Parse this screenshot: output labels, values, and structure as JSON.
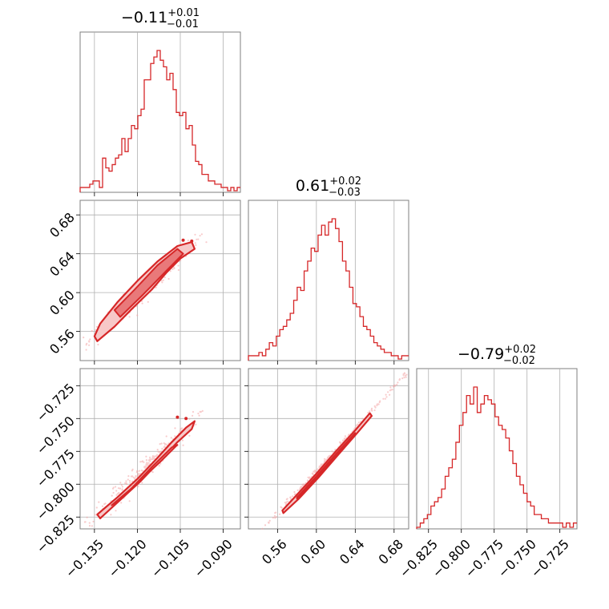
{
  "chart_data": {
    "type": "corner",
    "color": "#d62728",
    "parameters": [
      {
        "axis_range": [
          -0.14,
          -0.084
        ],
        "ticks": [
          -0.135,
          -0.12,
          -0.105,
          -0.09
        ],
        "tick_labels": [
          "−0.135",
          "−0.120",
          "−0.105",
          "−0.090"
        ],
        "title": {
          "median": "−0.11",
          "plus": "+0.01",
          "minus": "−0.01"
        }
      },
      {
        "axis_range": [
          0.53,
          0.695
        ],
        "ticks": [
          0.56,
          0.6,
          0.64,
          0.68
        ],
        "tick_labels": [
          "0.56",
          "0.60",
          "0.64",
          "0.68"
        ],
        "title": {
          "median": "0.61",
          "plus": "+0.02",
          "minus": "−0.03"
        }
      },
      {
        "axis_range": [
          -0.834,
          -0.712
        ],
        "ticks": [
          -0.825,
          -0.8,
          -0.775,
          -0.75,
          -0.725
        ],
        "tick_labels": [
          "−0.825",
          "−0.800",
          "−0.775",
          "−0.750",
          "−0.725"
        ],
        "title": {
          "median": "−0.79",
          "plus": "+0.02",
          "minus": "−0.02"
        }
      }
    ],
    "histograms": [
      {
        "parameter": 0,
        "bin_range": [
          -0.14,
          -0.084
        ],
        "counts": [
          1,
          1,
          1,
          2,
          3,
          3,
          1,
          10,
          7,
          6,
          8,
          10,
          11,
          16,
          12,
          16,
          20,
          19,
          23,
          25,
          34,
          34,
          39,
          41,
          43,
          40,
          38,
          34,
          36,
          31,
          24,
          23,
          24,
          19,
          20,
          14,
          9,
          8,
          5,
          5,
          3,
          3,
          2,
          2,
          1,
          1,
          0,
          1,
          0,
          1
        ]
      },
      {
        "parameter": 1,
        "bin_range": [
          0.53,
          0.695
        ],
        "counts": [
          1,
          1,
          1,
          2,
          1,
          3,
          5,
          4,
          7,
          9,
          10,
          12,
          14,
          18,
          22,
          21,
          27,
          30,
          34,
          33,
          38,
          41,
          38,
          42,
          43,
          40,
          36,
          30,
          27,
          22,
          17,
          16,
          13,
          10,
          9,
          7,
          5,
          4,
          3,
          2,
          2,
          1,
          1,
          0,
          1,
          1
        ]
      },
      {
        "parameter": 2,
        "bin_range": [
          -0.834,
          -0.712
        ],
        "counts": [
          0,
          1,
          2,
          3,
          5,
          6,
          7,
          9,
          12,
          14,
          16,
          20,
          24,
          27,
          31,
          29,
          33,
          27,
          29,
          31,
          30,
          29,
          26,
          24,
          23,
          21,
          18,
          15,
          12,
          10,
          8,
          6,
          5,
          3,
          3,
          2,
          2,
          1,
          1,
          1,
          1,
          0,
          1,
          0,
          1
        ]
      }
    ],
    "pairs": [
      {
        "x_parameter": 0,
        "y_parameter": 1,
        "contour_path": [
          [
            -0.134,
            0.55
          ],
          [
            -0.128,
            0.565
          ],
          [
            -0.122,
            0.583
          ],
          [
            -0.115,
            0.603
          ],
          [
            -0.11,
            0.62
          ],
          [
            -0.105,
            0.635
          ],
          [
            -0.1,
            0.645
          ],
          [
            -0.101,
            0.652
          ],
          [
            -0.106,
            0.648
          ],
          [
            -0.113,
            0.632
          ],
          [
            -0.12,
            0.612
          ],
          [
            -0.127,
            0.59
          ],
          [
            -0.133,
            0.568
          ],
          [
            -0.135,
            0.555
          ]
        ],
        "inner_path": [
          [
            -0.126,
            0.575
          ],
          [
            -0.118,
            0.598
          ],
          [
            -0.11,
            0.622
          ],
          [
            -0.104,
            0.64
          ],
          [
            -0.106,
            0.645
          ],
          [
            -0.113,
            0.628
          ],
          [
            -0.121,
            0.603
          ],
          [
            -0.128,
            0.582
          ]
        ],
        "trend": {
          "x0": -0.135,
          "y0": 0.553,
          "x1": -0.1,
          "y1": 0.652,
          "sigma": 0.006
        },
        "outliers": [
          [
            -0.104,
            0.654
          ],
          [
            -0.101,
            0.653
          ]
        ]
      },
      {
        "x_parameter": 0,
        "y_parameter": 2,
        "contour_path": [
          [
            -0.134,
            -0.823
          ],
          [
            -0.127,
            -0.81
          ],
          [
            -0.12,
            -0.796
          ],
          [
            -0.113,
            -0.78
          ],
          [
            -0.108,
            -0.768
          ],
          [
            -0.103,
            -0.757
          ],
          [
            -0.1,
            -0.752
          ],
          [
            -0.101,
            -0.758
          ],
          [
            -0.106,
            -0.768
          ],
          [
            -0.112,
            -0.782
          ],
          [
            -0.119,
            -0.798
          ],
          [
            -0.126,
            -0.812
          ],
          [
            -0.133,
            -0.826
          ]
        ],
        "inner_path": [
          [
            -0.127,
            -0.813
          ],
          [
            -0.12,
            -0.799
          ],
          [
            -0.112,
            -0.783
          ],
          [
            -0.106,
            -0.77
          ],
          [
            -0.108,
            -0.772
          ],
          [
            -0.115,
            -0.787
          ],
          [
            -0.122,
            -0.803
          ],
          [
            -0.129,
            -0.816
          ]
        ],
        "trend": {
          "x0": -0.135,
          "y0": -0.826,
          "x1": -0.1,
          "y1": -0.752,
          "sigma": 0.006
        },
        "outliers": [
          [
            -0.106,
            -0.749
          ],
          [
            -0.103,
            -0.75
          ]
        ]
      },
      {
        "x_parameter": 1,
        "y_parameter": 2,
        "contour_path": [
          [
            0.565,
            -0.82
          ],
          [
            0.58,
            -0.808
          ],
          [
            0.6,
            -0.792
          ],
          [
            0.62,
            -0.775
          ],
          [
            0.64,
            -0.759
          ],
          [
            0.655,
            -0.746
          ],
          [
            0.657,
            -0.748
          ],
          [
            0.642,
            -0.761
          ],
          [
            0.622,
            -0.778
          ],
          [
            0.602,
            -0.795
          ],
          [
            0.582,
            -0.811
          ],
          [
            0.566,
            -0.822
          ]
        ],
        "inner_path": [
          [
            0.58,
            -0.81
          ],
          [
            0.6,
            -0.794
          ],
          [
            0.62,
            -0.777
          ],
          [
            0.64,
            -0.761
          ],
          [
            0.64,
            -0.762
          ],
          [
            0.62,
            -0.778
          ],
          [
            0.6,
            -0.795
          ],
          [
            0.58,
            -0.811
          ]
        ],
        "trend": {
          "x0": 0.55,
          "y0": -0.83,
          "x1": 0.685,
          "y1": -0.722,
          "sigma": 0.0015
        },
        "outliers": []
      }
    ]
  }
}
